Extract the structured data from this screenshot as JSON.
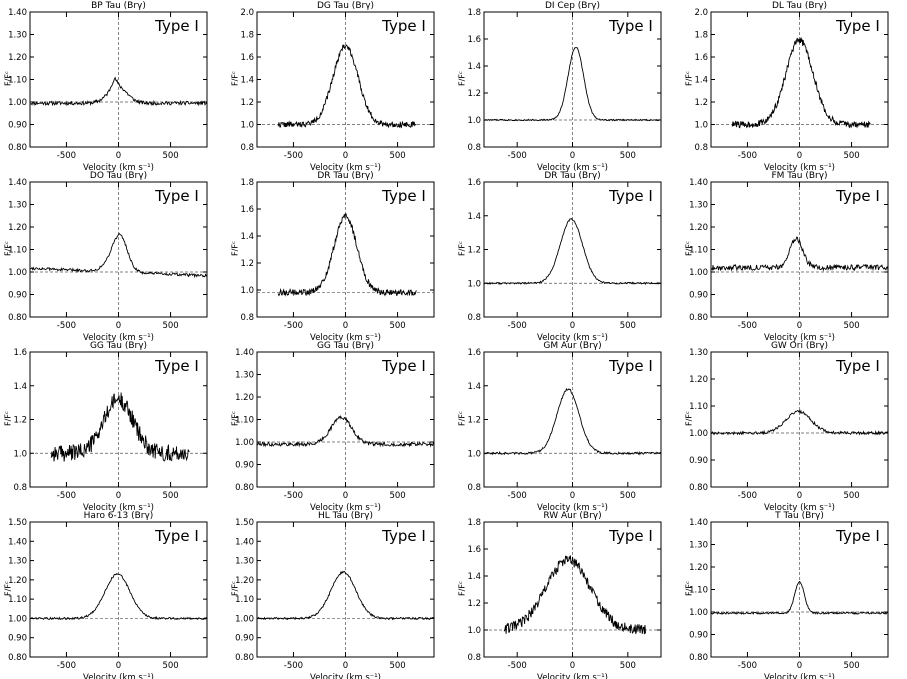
{
  "common": {
    "xlabel": "Velocity (km s⁻¹)",
    "ylabel": "F/Fᶜ",
    "type_label": "Type I"
  },
  "chart_data": [
    {
      "type": "line",
      "title": "BP Tau (Brγ)",
      "xlim": [
        -850,
        850
      ],
      "ylim": [
        0.8,
        1.4
      ],
      "yticks": [
        "0.80",
        "0.90",
        "1.00",
        "1.10",
        "1.20",
        "1.30",
        "1.40"
      ],
      "xticks": [
        "-500",
        "0",
        "500"
      ],
      "xrange": [
        -850,
        850
      ],
      "noise": 0.008,
      "seed": 11,
      "profile": [
        {
          "amp": 0.075,
          "center": -10,
          "sigma": 90
        },
        {
          "amp": 0.035,
          "center": -40,
          "sigma": 25
        }
      ],
      "baseline": 0.995,
      "slope": 0.0,
      "xlabel": "Velocity (km s⁻¹)",
      "ylabel": "F/Fᶜ",
      "annotation": "Type I"
    },
    {
      "type": "line",
      "title": "DG Tau (Brγ)",
      "xlim": [
        -850,
        850
      ],
      "ylim": [
        0.8,
        2.0
      ],
      "yticks": [
        "0.8",
        "1.0",
        "1.2",
        "1.4",
        "1.6",
        "1.8",
        "2.0"
      ],
      "xticks": [
        "-500",
        "0",
        "500"
      ],
      "xrange": [
        -650,
        680
      ],
      "noise": 0.025,
      "seed": 22,
      "profile": [
        {
          "amp": 0.7,
          "center": 0,
          "sigma": 120
        }
      ],
      "baseline": 1.0,
      "slope": 0.0,
      "xlabel": "Velocity (km s⁻¹)",
      "ylabel": "F/Fᶜ",
      "annotation": "Type I"
    },
    {
      "type": "line",
      "title": "DI Cep (Brγ)",
      "xlim": [
        -800,
        800
      ],
      "ylim": [
        0.8,
        1.8
      ],
      "yticks": [
        "0.8",
        "1.0",
        "1.2",
        "1.4",
        "1.6",
        "1.8"
      ],
      "xticks": [
        "-500",
        "0",
        "500"
      ],
      "xrange": [
        -800,
        800
      ],
      "noise": 0.005,
      "seed": 33,
      "profile": [
        {
          "amp": 0.54,
          "center": 30,
          "sigma": 70
        }
      ],
      "baseline": 1.0,
      "slope": 0.0,
      "xlabel": "Velocity (km s⁻¹)",
      "ylabel": "F/Fᶜ",
      "annotation": "Type I"
    },
    {
      "type": "line",
      "title": "DL Tau (Brγ)",
      "xlim": [
        -850,
        850
      ],
      "ylim": [
        0.8,
        2.0
      ],
      "yticks": [
        "0.8",
        "1.0",
        "1.2",
        "1.4",
        "1.6",
        "1.8",
        "2.0"
      ],
      "xticks": [
        "-500",
        "0",
        "500"
      ],
      "xrange": [
        -650,
        680
      ],
      "noise": 0.03,
      "seed": 44,
      "profile": [
        {
          "amp": 0.75,
          "center": 0,
          "sigma": 130
        }
      ],
      "baseline": 1.0,
      "slope": 0.0,
      "xlabel": "Velocity (km s⁻¹)",
      "ylabel": "F/Fᶜ",
      "annotation": "Type I"
    },
    {
      "type": "line",
      "title": "DO Tau (Brγ)",
      "xlim": [
        -850,
        850
      ],
      "ylim": [
        0.8,
        1.4
      ],
      "yticks": [
        "0.80",
        "0.90",
        "1.00",
        "1.10",
        "1.20",
        "1.30",
        "1.40"
      ],
      "xticks": [
        "-500",
        "0",
        "500"
      ],
      "xrange": [
        -850,
        850
      ],
      "noise": 0.006,
      "seed": 55,
      "profile": [
        {
          "amp": 0.14,
          "center": 20,
          "sigma": 70
        },
        {
          "amp": 0.04,
          "center": -60,
          "sigma": 80
        }
      ],
      "baseline": 1.0,
      "slope": -2e-05,
      "xlabel": "Velocity (km s⁻¹)",
      "ylabel": "F/Fᶜ",
      "annotation": "Type I"
    },
    {
      "type": "line",
      "title": "DR Tau (Brγ)",
      "xlim": [
        -850,
        850
      ],
      "ylim": [
        0.8,
        1.9
      ],
      "yticks": [
        "0.8",
        "1.0",
        "1.2",
        "1.4",
        "1.6",
        "1.8"
      ],
      "xticks": [
        "-500",
        "0",
        "500"
      ],
      "xrange": [
        -650,
        680
      ],
      "noise": 0.025,
      "seed": 66,
      "profile": [
        {
          "amp": 0.62,
          "center": 0,
          "sigma": 110
        }
      ],
      "baseline": 1.0,
      "slope": 0.0,
      "xlabel": "Velocity (km s⁻¹)",
      "ylabel": "F/Fᶜ",
      "annotation": "Type I"
    },
    {
      "type": "line",
      "title": "DR Tau (Brγ)",
      "xlim": [
        -800,
        800
      ],
      "ylim": [
        0.8,
        1.6
      ],
      "yticks": [
        "0.8",
        "1.0",
        "1.2",
        "1.4",
        "1.6"
      ],
      "xticks": [
        "-500",
        "0",
        "500"
      ],
      "xrange": [
        -800,
        800
      ],
      "noise": 0.005,
      "seed": 77,
      "profile": [
        {
          "amp": 0.38,
          "center": -10,
          "sigma": 100
        }
      ],
      "baseline": 1.0,
      "slope": 0.0,
      "xlabel": "Velocity (km s⁻¹)",
      "ylabel": "F/Fᶜ",
      "annotation": "Type I"
    },
    {
      "type": "line",
      "title": "FM Tau (Brγ)",
      "xlim": [
        -850,
        850
      ],
      "ylim": [
        0.8,
        1.4
      ],
      "yticks": [
        "0.80",
        "0.90",
        "1.00",
        "1.10",
        "1.20",
        "1.30",
        "1.40"
      ],
      "xticks": [
        "-500",
        "0",
        "500"
      ],
      "xrange": [
        -850,
        850
      ],
      "noise": 0.012,
      "seed": 88,
      "profile": [
        {
          "amp": 0.13,
          "center": -30,
          "sigma": 60
        }
      ],
      "baseline": 1.02,
      "slope": 0.0,
      "xlabel": "Velocity (km s⁻¹)",
      "ylabel": "F/Fᶜ",
      "annotation": "Type I"
    },
    {
      "type": "line",
      "title": "GG Tau (Brγ)",
      "xlim": [
        -850,
        850
      ],
      "ylim": [
        0.8,
        1.6
      ],
      "yticks": [
        "0.8",
        "1.0",
        "1.2",
        "1.4",
        "1.6"
      ],
      "xticks": [
        "-500",
        "0",
        "500"
      ],
      "xrange": [
        -650,
        680
      ],
      "noise": 0.05,
      "seed": 99,
      "profile": [
        {
          "amp": 0.32,
          "center": 0,
          "sigma": 140
        }
      ],
      "baseline": 1.0,
      "slope": 0.0,
      "xlabel": "Velocity (km s⁻¹)",
      "ylabel": "F/Fᶜ",
      "annotation": "Type I"
    },
    {
      "type": "line",
      "title": "GG Tau (Brγ)",
      "xlim": [
        -850,
        850
      ],
      "ylim": [
        0.8,
        1.4
      ],
      "yticks": [
        "0.80",
        "0.90",
        "1.00",
        "1.10",
        "1.20",
        "1.30",
        "1.40"
      ],
      "xticks": [
        "-500",
        "0",
        "500"
      ],
      "xrange": [
        -850,
        850
      ],
      "noise": 0.008,
      "seed": 111,
      "profile": [
        {
          "amp": 0.12,
          "center": -40,
          "sigma": 100
        }
      ],
      "baseline": 0.99,
      "slope": 0.0,
      "xlabel": "Velocity (km s⁻¹)",
      "ylabel": "F/Fᶜ",
      "annotation": "Type I"
    },
    {
      "type": "line",
      "title": "GM Aur (Brγ)",
      "xlim": [
        -800,
        800
      ],
      "ylim": [
        0.8,
        1.6
      ],
      "yticks": [
        "0.8",
        "1.0",
        "1.2",
        "1.4",
        "1.6"
      ],
      "xticks": [
        "-500",
        "0",
        "500"
      ],
      "xrange": [
        -800,
        800
      ],
      "noise": 0.006,
      "seed": 122,
      "profile": [
        {
          "amp": 0.38,
          "center": -40,
          "sigma": 100
        }
      ],
      "baseline": 1.0,
      "slope": 0.0,
      "xlabel": "Velocity (km s⁻¹)",
      "ylabel": "F/Fᶜ",
      "annotation": "Type I"
    },
    {
      "type": "line",
      "title": "GW Ori (Brγ)",
      "xlim": [
        -850,
        850
      ],
      "ylim": [
        0.8,
        1.3
      ],
      "yticks": [
        "0.80",
        "0.90",
        "1.00",
        "1.10",
        "1.20",
        "1.30"
      ],
      "xticks": [
        "-500",
        "0",
        "500"
      ],
      "xrange": [
        -850,
        850
      ],
      "noise": 0.005,
      "seed": 133,
      "profile": [
        {
          "amp": 0.08,
          "center": -10,
          "sigma": 120
        }
      ],
      "baseline": 1.0,
      "slope": 0.0,
      "xlabel": "Velocity (km s⁻¹)",
      "ylabel": "F/Fᶜ",
      "annotation": "Type I"
    },
    {
      "type": "line",
      "title": "Haro 6-13 (Brγ)",
      "xlim": [
        -850,
        850
      ],
      "ylim": [
        0.8,
        1.5
      ],
      "yticks": [
        "0.80",
        "0.90",
        "1.00",
        "1.10",
        "1.20",
        "1.30",
        "1.40",
        "1.50"
      ],
      "xticks": [
        "-500",
        "0",
        "500"
      ],
      "xrange": [
        -850,
        850
      ],
      "noise": 0.005,
      "seed": 144,
      "profile": [
        {
          "amp": 0.23,
          "center": -10,
          "sigma": 120
        }
      ],
      "baseline": 1.0,
      "slope": 0.0,
      "xlabel": "Velocity (km s⁻¹)",
      "ylabel": "F/Fᶜ",
      "annotation": "Type I"
    },
    {
      "type": "line",
      "title": "HL Tau (Brγ)",
      "xlim": [
        -850,
        850
      ],
      "ylim": [
        0.8,
        1.5
      ],
      "yticks": [
        "0.80",
        "0.90",
        "1.00",
        "1.10",
        "1.20",
        "1.30",
        "1.40",
        "1.50"
      ],
      "xticks": [
        "-500",
        "0",
        "500"
      ],
      "xrange": [
        -850,
        850
      ],
      "noise": 0.005,
      "seed": 155,
      "profile": [
        {
          "amp": 0.24,
          "center": -20,
          "sigma": 120
        }
      ],
      "baseline": 1.0,
      "slope": 0.0,
      "xlabel": "Velocity (km s⁻¹)",
      "ylabel": "F/Fᶜ",
      "annotation": "Type I"
    },
    {
      "type": "line",
      "title": "RW Aur (Brγ)",
      "xlim": [
        -800,
        800
      ],
      "ylim": [
        0.8,
        1.8
      ],
      "yticks": [
        "0.8",
        "1.0",
        "1.2",
        "1.4",
        "1.6",
        "1.8"
      ],
      "xticks": [
        "-500",
        "0",
        "500"
      ],
      "xrange": [
        -620,
        660
      ],
      "noise": 0.04,
      "seed": 166,
      "profile": [
        {
          "amp": 0.52,
          "center": -40,
          "sigma": 200
        }
      ],
      "baseline": 1.0,
      "slope": 0.0,
      "xlabel": "Velocity (km s⁻¹)",
      "ylabel": "F/Fᶜ",
      "annotation": "Type I"
    },
    {
      "type": "line",
      "title": "T Tau (Brγ)",
      "xlim": [
        -850,
        850
      ],
      "ylim": [
        0.8,
        1.4
      ],
      "yticks": [
        "0.80",
        "0.90",
        "1.00",
        "1.10",
        "1.20",
        "1.30",
        "1.40"
      ],
      "xticks": [
        "-500",
        "0",
        "500"
      ],
      "xrange": [
        -850,
        850
      ],
      "noise": 0.004,
      "seed": 177,
      "profile": [
        {
          "amp": 0.14,
          "center": 0,
          "sigma": 45
        }
      ],
      "baseline": 0.995,
      "slope": 0.0,
      "xlabel": "Velocity (km s⁻¹)",
      "ylabel": "F/Fᶜ",
      "annotation": "Type I"
    }
  ]
}
